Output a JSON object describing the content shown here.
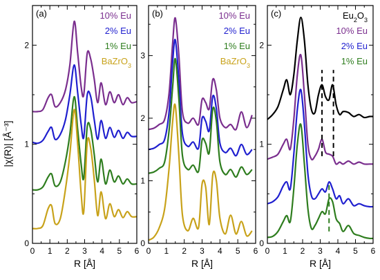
{
  "figure": {
    "ylabel": "|χ(R)| [Å⁻³]",
    "xlabel": "R [Å]"
  },
  "colors": {
    "10% Eu": "#7a2e8e",
    "2% Eu": "#1f1fcf",
    "1% Eu": "#2e7d1e",
    "BaZrO3": "#c8a21a",
    "Eu2O3": "#000000"
  },
  "chart_data": [
    {
      "type": "line",
      "panel_label": "(a)",
      "xlim": [
        0,
        6
      ],
      "ylim": [
        0,
        2.4
      ],
      "xticks": [
        0,
        1,
        2,
        3,
        4,
        5,
        6
      ],
      "yticks": [
        0,
        1,
        2
      ],
      "xlabel": "R [Å]",
      "ylabel": "|χ(R)| [Å⁻³]",
      "legend": {
        "position": "top-right",
        "entries": [
          "10% Eu",
          "2% Eu",
          "1% Eu",
          "BaZrO3"
        ]
      },
      "series": [
        {
          "name": "10% Eu",
          "x": [
            0.0,
            0.3,
            0.6,
            0.9,
            1.1,
            1.3,
            1.6,
            1.9,
            2.15,
            2.4,
            2.6,
            2.8,
            2.95,
            3.15,
            3.35,
            3.55,
            3.75,
            3.95,
            4.2,
            4.45,
            4.7,
            4.95,
            5.2,
            5.45,
            5.7,
            6.0
          ],
          "y": [
            1.33,
            1.33,
            1.35,
            1.47,
            1.5,
            1.38,
            1.42,
            1.55,
            1.8,
            2.24,
            1.92,
            1.58,
            1.5,
            1.92,
            1.86,
            1.66,
            1.42,
            1.62,
            1.4,
            1.53,
            1.42,
            1.5,
            1.4,
            1.47,
            1.42,
            1.43
          ]
        },
        {
          "name": "2% Eu",
          "x": [
            0.0,
            0.3,
            0.6,
            0.9,
            1.1,
            1.3,
            1.6,
            1.9,
            2.15,
            2.4,
            2.6,
            2.8,
            2.95,
            3.15,
            3.35,
            3.55,
            3.75,
            3.95,
            4.2,
            4.45,
            4.7,
            4.95,
            5.2,
            5.45,
            5.7,
            6.0
          ],
          "y": [
            1.02,
            1.01,
            1.04,
            1.13,
            1.17,
            1.05,
            1.1,
            1.25,
            1.5,
            1.8,
            1.52,
            1.2,
            1.07,
            1.5,
            1.48,
            1.25,
            1.05,
            1.24,
            1.06,
            1.17,
            1.07,
            1.14,
            1.06,
            1.12,
            1.08,
            1.08
          ]
        },
        {
          "name": "1% Eu",
          "x": [
            0.0,
            0.3,
            0.6,
            0.9,
            1.1,
            1.3,
            1.6,
            1.9,
            2.15,
            2.4,
            2.6,
            2.8,
            2.95,
            3.15,
            3.35,
            3.55,
            3.75,
            3.95,
            4.2,
            4.45,
            4.7,
            4.95,
            5.2,
            5.45,
            5.7,
            6.0
          ],
          "y": [
            0.54,
            0.54,
            0.57,
            0.67,
            0.7,
            0.58,
            0.62,
            0.83,
            1.1,
            1.48,
            1.15,
            0.8,
            0.66,
            1.18,
            1.15,
            0.9,
            0.62,
            0.85,
            0.6,
            0.74,
            0.62,
            0.68,
            0.6,
            0.65,
            0.6,
            0.6
          ]
        },
        {
          "name": "BaZrO3",
          "x": [
            0.0,
            0.3,
            0.6,
            0.9,
            1.1,
            1.3,
            1.6,
            1.9,
            2.15,
            2.4,
            2.6,
            2.8,
            2.95,
            3.15,
            3.35,
            3.55,
            3.75,
            3.95,
            4.2,
            4.45,
            4.7,
            4.95,
            5.2,
            5.45,
            5.7,
            6.0
          ],
          "y": [
            0.15,
            0.15,
            0.18,
            0.35,
            0.38,
            0.2,
            0.25,
            0.55,
            0.9,
            1.35,
            1.0,
            0.5,
            0.32,
            1.02,
            0.96,
            0.65,
            0.28,
            0.52,
            0.25,
            0.4,
            0.27,
            0.34,
            0.26,
            0.32,
            0.27,
            0.27
          ]
        }
      ]
    },
    {
      "type": "line",
      "panel_label": "(b)",
      "xlim": [
        0,
        6
      ],
      "ylim": [
        0,
        3.8
      ],
      "xticks": [
        0,
        1,
        2,
        3,
        4,
        5,
        6
      ],
      "yticks": [
        0,
        1,
        2,
        3
      ],
      "xlabel": "R [Å]",
      "legend": {
        "position": "top-right",
        "entries": [
          "10% Eu",
          "2% Eu",
          "1% Eu",
          "BaZrO3"
        ]
      },
      "series": [
        {
          "name": "10% Eu",
          "x": [
            0.0,
            0.3,
            0.6,
            0.9,
            1.15,
            1.35,
            1.5,
            1.7,
            1.9,
            2.2,
            2.5,
            2.8,
            3.0,
            3.2,
            3.4,
            3.6,
            3.8,
            4.0,
            4.3,
            4.6,
            4.9,
            5.2,
            5.5,
            5.8
          ],
          "y": [
            1.82,
            1.84,
            1.9,
            1.98,
            2.4,
            3.2,
            3.6,
            3.0,
            2.1,
            1.92,
            2.0,
            1.9,
            2.3,
            2.25,
            2.15,
            2.62,
            2.45,
            2.0,
            1.85,
            1.9,
            1.82,
            2.1,
            1.85,
            2.05
          ]
        },
        {
          "name": "2% Eu",
          "x": [
            0.0,
            0.3,
            0.6,
            0.9,
            1.15,
            1.35,
            1.5,
            1.7,
            1.9,
            2.2,
            2.5,
            2.8,
            3.0,
            3.2,
            3.4,
            3.6,
            3.8,
            4.0,
            4.3,
            4.6,
            4.9,
            5.2,
            5.5,
            5.8
          ],
          "y": [
            1.5,
            1.52,
            1.58,
            1.66,
            2.1,
            2.9,
            3.25,
            2.6,
            1.75,
            1.55,
            1.62,
            1.52,
            2.0,
            1.95,
            1.8,
            2.35,
            2.15,
            1.6,
            1.45,
            1.52,
            1.4,
            1.58,
            1.42,
            1.5
          ]
        },
        {
          "name": "1% Eu",
          "x": [
            0.0,
            0.3,
            0.6,
            0.9,
            1.15,
            1.35,
            1.5,
            1.7,
            1.9,
            2.2,
            2.5,
            2.8,
            3.0,
            3.2,
            3.4,
            3.6,
            3.8,
            4.0,
            4.3,
            4.6,
            4.9,
            5.2,
            5.5,
            5.8
          ],
          "y": [
            1.12,
            1.14,
            1.2,
            1.3,
            1.8,
            2.5,
            2.95,
            2.3,
            1.4,
            1.18,
            1.25,
            1.15,
            1.65,
            1.6,
            1.45,
            2.15,
            1.95,
            1.3,
            1.1,
            1.18,
            1.06,
            1.22,
            1.1,
            1.18
          ]
        },
        {
          "name": "BaZrO3",
          "x": [
            0.0,
            0.3,
            0.6,
            0.9,
            1.15,
            1.35,
            1.5,
            1.7,
            1.9,
            2.2,
            2.5,
            2.8,
            3.0,
            3.2,
            3.4,
            3.6,
            3.8,
            4.0,
            4.3,
            4.6,
            4.9,
            5.2,
            5.5,
            5.8
          ],
          "y": [
            0.05,
            0.1,
            0.25,
            0.55,
            1.2,
            1.95,
            2.2,
            1.4,
            0.45,
            0.2,
            0.4,
            0.25,
            0.95,
            0.9,
            0.3,
            1.1,
            1.0,
            0.4,
            0.15,
            0.45,
            0.15,
            0.35,
            0.12,
            0.2
          ]
        }
      ]
    },
    {
      "type": "line",
      "panel_label": "(c)",
      "xlim": [
        0,
        6
      ],
      "ylim": [
        0,
        2.4
      ],
      "xticks": [
        0,
        1,
        2,
        3,
        4,
        5,
        6
      ],
      "yticks": [
        0,
        1,
        2
      ],
      "xlabel": "R [Å]",
      "legend": {
        "position": "top-right",
        "entries": [
          "Eu2O3",
          "10% Eu",
          "2% Eu",
          "1% Eu"
        ]
      },
      "annotations": [
        {
          "type": "vline",
          "x": 3.1,
          "ymin": 0.88,
          "ymax": 1.75,
          "style": "dashed",
          "color": "#000000"
        },
        {
          "type": "vline",
          "x": 3.75,
          "ymin": 0.88,
          "ymax": 1.75,
          "style": "dashed",
          "color": "#000000"
        },
        {
          "type": "vline",
          "x": 3.5,
          "ymin": 0.12,
          "ymax": 0.6,
          "style": "dashed",
          "color": "#2e7d1e"
        }
      ],
      "series": [
        {
          "name": "Eu2O3",
          "x": [
            0.0,
            0.3,
            0.6,
            0.9,
            1.1,
            1.3,
            1.5,
            1.7,
            1.9,
            2.1,
            2.3,
            2.5,
            2.7,
            2.9,
            3.1,
            3.3,
            3.5,
            3.7,
            3.9,
            4.1,
            4.3,
            4.6,
            4.9,
            5.2,
            5.5,
            5.8,
            6.0
          ],
          "y": [
            1.25,
            1.3,
            1.38,
            1.55,
            1.65,
            1.5,
            1.7,
            2.05,
            2.28,
            2.05,
            1.6,
            1.35,
            1.32,
            1.5,
            1.6,
            1.48,
            1.45,
            1.6,
            1.4,
            1.3,
            1.33,
            1.32,
            1.28,
            1.3,
            1.27,
            1.28,
            1.28
          ]
        },
        {
          "name": "10% Eu",
          "x": [
            0.0,
            0.3,
            0.6,
            0.9,
            1.1,
            1.3,
            1.5,
            1.7,
            1.9,
            2.1,
            2.3,
            2.5,
            2.7,
            2.9,
            3.1,
            3.3,
            3.5,
            3.7,
            3.9,
            4.1,
            4.3,
            4.6,
            4.9,
            5.2,
            5.5,
            5.8,
            6.0
          ],
          "y": [
            0.85,
            0.87,
            0.9,
            1.0,
            1.05,
            0.95,
            1.25,
            1.7,
            1.9,
            1.5,
            1.0,
            0.85,
            0.88,
            0.95,
            1.05,
            0.92,
            0.9,
            0.88,
            0.8,
            0.82,
            0.8,
            0.83,
            0.8,
            0.82,
            0.8,
            0.8,
            0.8
          ]
        },
        {
          "name": "2% Eu",
          "x": [
            0.0,
            0.3,
            0.6,
            0.9,
            1.1,
            1.3,
            1.5,
            1.7,
            1.9,
            2.1,
            2.3,
            2.5,
            2.7,
            2.9,
            3.1,
            3.3,
            3.5,
            3.7,
            3.9,
            4.1,
            4.3,
            4.6,
            4.9,
            5.2,
            5.5,
            5.8,
            6.0
          ],
          "y": [
            0.4,
            0.42,
            0.47,
            0.58,
            0.62,
            0.55,
            0.9,
            1.35,
            1.55,
            1.2,
            0.7,
            0.48,
            0.45,
            0.5,
            0.55,
            0.52,
            0.62,
            0.55,
            0.45,
            0.48,
            0.4,
            0.45,
            0.38,
            0.4,
            0.38,
            0.37,
            0.37
          ]
        },
        {
          "name": "1% Eu",
          "x": [
            0.0,
            0.3,
            0.6,
            0.9,
            1.1,
            1.3,
            1.5,
            1.7,
            1.9,
            2.1,
            2.3,
            2.5,
            2.7,
            2.9,
            3.1,
            3.3,
            3.5,
            3.7,
            3.9,
            4.1,
            4.3,
            4.6,
            4.9,
            5.2,
            5.5,
            5.8,
            6.0
          ],
          "y": [
            0.06,
            0.07,
            0.12,
            0.22,
            0.28,
            0.22,
            0.55,
            1.0,
            1.2,
            0.8,
            0.35,
            0.15,
            0.18,
            0.25,
            0.32,
            0.3,
            0.45,
            0.42,
            0.25,
            0.2,
            0.12,
            0.18,
            0.1,
            0.08,
            0.06,
            0.05,
            0.05
          ]
        }
      ]
    }
  ]
}
